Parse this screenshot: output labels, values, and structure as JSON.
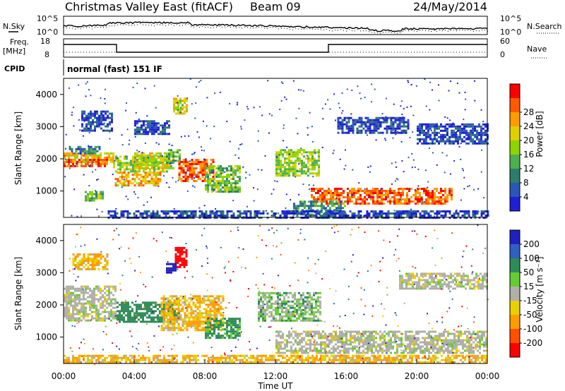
{
  "header": {
    "title": "Christmas Valley East (fitACF)",
    "beam": "Beam 09",
    "date": "24/May/2014"
  },
  "top_panels": {
    "nsky_label": "N.Sky",
    "nsky_ticks": [
      "10^5",
      "10^0"
    ],
    "nsearch_label": "N.Search",
    "nsearch_ticks": [
      "10^5",
      "10^0"
    ],
    "freq_label": "Freq.",
    "freq_unit": "[MHz]",
    "freq_ticks": [
      "18",
      "8"
    ],
    "nave_label": "Nave",
    "nave_ticks": [
      "60",
      "0"
    ],
    "cpid_label": "CPID",
    "cpid_value": "normal (fast) 151 IF"
  },
  "chart_data": [
    {
      "type": "heatmap",
      "name": "power",
      "ylabel": "Slant Range [km]",
      "ylim": [
        180,
        4500
      ],
      "xlim": [
        0,
        24
      ],
      "yticks": [
        1000,
        2000,
        3000,
        4000
      ],
      "colorbar_label": "Power [dB]",
      "colorbar_ticks": [
        "4",
        "8",
        "12",
        "16",
        "20",
        "24",
        "28"
      ],
      "colorscale": [
        "#1f1fd6",
        "#2a56b8",
        "#2e7d6b",
        "#4caf50",
        "#8fd400",
        "#e0d000",
        "#ff9c00",
        "#ff5a00",
        "#ff0000"
      ],
      "regions": [
        {
          "x": [
            0.0,
            2.8
          ],
          "y": [
            1900,
            2200
          ],
          "v": 22
        },
        {
          "x": [
            0.0,
            2.5
          ],
          "y": [
            1800,
            2000
          ],
          "v": 28
        },
        {
          "x": [
            0.3,
            2.0
          ],
          "y": [
            2200,
            2400
          ],
          "v": 10
        },
        {
          "x": [
            1.2,
            2.2
          ],
          "y": [
            700,
            1000
          ],
          "v": 16
        },
        {
          "x": [
            1.0,
            2.8
          ],
          "y": [
            2900,
            3500
          ],
          "v": 6
        },
        {
          "x": [
            2.8,
            6.0
          ],
          "y": [
            1600,
            2100
          ],
          "v": 18
        },
        {
          "x": [
            2.9,
            5.5
          ],
          "y": [
            1200,
            1600
          ],
          "v": 24
        },
        {
          "x": [
            4.0,
            6.2
          ],
          "y": [
            1700,
            2200
          ],
          "v": 20
        },
        {
          "x": [
            5.8,
            6.6
          ],
          "y": [
            1900,
            2300
          ],
          "v": 14
        },
        {
          "x": [
            6.5,
            8.5
          ],
          "y": [
            1300,
            2000
          ],
          "v": 28
        },
        {
          "x": [
            8.0,
            10.0
          ],
          "y": [
            1000,
            1800
          ],
          "v": 16
        },
        {
          "x": [
            6.2,
            7.0
          ],
          "y": [
            3400,
            3900
          ],
          "v": 20
        },
        {
          "x": [
            4.0,
            6.0
          ],
          "y": [
            2800,
            3200
          ],
          "v": 6
        },
        {
          "x": [
            12.0,
            14.5
          ],
          "y": [
            1500,
            2300
          ],
          "v": 18
        },
        {
          "x": [
            14.0,
            22.0
          ],
          "y": [
            600,
            1100
          ],
          "v": 28
        },
        {
          "x": [
            13.0,
            16.0
          ],
          "y": [
            300,
            700
          ],
          "v": 12
        },
        {
          "x": [
            20.0,
            24.0
          ],
          "y": [
            2500,
            3100
          ],
          "v": 6
        },
        {
          "x": [
            15.5,
            19.5
          ],
          "y": [
            2800,
            3300
          ],
          "v": 6
        },
        {
          "x": [
            2.5,
            24.0
          ],
          "y": [
            200,
            400
          ],
          "v": 6
        }
      ]
    },
    {
      "type": "heatmap",
      "name": "velocity",
      "ylabel": "Slant Range [km]",
      "xlabel": "Time UT",
      "ylim": [
        180,
        4500
      ],
      "xlim": [
        0,
        24
      ],
      "yticks": [
        1000,
        2000,
        3000,
        4000
      ],
      "xticks": [
        "00:00",
        "04:00",
        "08:00",
        "12:00",
        "16:00",
        "20:00",
        "00:00"
      ],
      "colorbar_label": "Velocity [m s⁻¹]",
      "colorbar_ticks": [
        "200",
        "100",
        "50",
        "15",
        "-15",
        "-50",
        "-100",
        "-200"
      ],
      "colorscale": [
        "#2020c0",
        "#3060c0",
        "#2e8b57",
        "#66cc33",
        "#b0b0a8",
        "#e8d000",
        "#ff9c00",
        "#ff5000",
        "#ff0000"
      ],
      "regions": [
        {
          "x": [
            0.0,
            3.0
          ],
          "y": [
            1500,
            2600
          ],
          "v": 0
        },
        {
          "x": [
            3.0,
            6.5
          ],
          "y": [
            1500,
            2100
          ],
          "v": 50
        },
        {
          "x": [
            5.5,
            9.0
          ],
          "y": [
            1200,
            2300
          ],
          "v": -30
        },
        {
          "x": [
            8.0,
            10.0
          ],
          "y": [
            1000,
            1600
          ],
          "v": 40
        },
        {
          "x": [
            6.3,
            7.0
          ],
          "y": [
            3200,
            3800
          ],
          "v": -200
        },
        {
          "x": [
            5.8,
            6.3
          ],
          "y": [
            3000,
            3300
          ],
          "v": 200
        },
        {
          "x": [
            11.0,
            14.5
          ],
          "y": [
            1500,
            2400
          ],
          "v": 20
        },
        {
          "x": [
            12.0,
            24.0
          ],
          "y": [
            500,
            1200
          ],
          "v": 0
        },
        {
          "x": [
            0.5,
            2.5
          ],
          "y": [
            3100,
            3600
          ],
          "v": -30
        },
        {
          "x": [
            19.0,
            24.0
          ],
          "y": [
            2500,
            3000
          ],
          "v": 0
        },
        {
          "x": [
            0.0,
            24.0
          ],
          "y": [
            200,
            450
          ],
          "v": -30
        }
      ]
    }
  ]
}
